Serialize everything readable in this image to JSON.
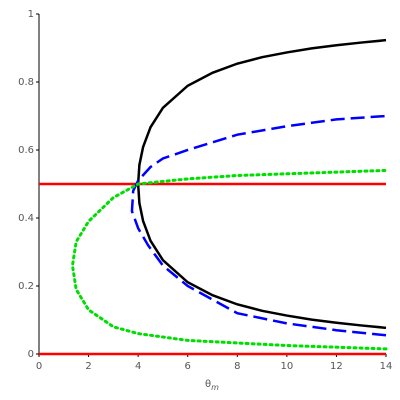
{
  "chart_data": {
    "type": "line",
    "xlabel": "θ",
    "xlabel_sub": "m",
    "xlim": [
      0,
      14
    ],
    "xticks": [
      0,
      2,
      4,
      6,
      8,
      10,
      12,
      14
    ],
    "ylim": [
      0,
      1
    ],
    "yticks": [
      0,
      0.2,
      0.4,
      0.6,
      0.8,
      1
    ],
    "series": [
      {
        "color": "#ff0000",
        "dash": "solid",
        "x": [
          0,
          14
        ],
        "values": [
          0.5,
          0.5
        ]
      },
      {
        "color": "#ff0000",
        "dash": "solid",
        "x": [
          0,
          14
        ],
        "values": [
          0,
          0
        ]
      },
      {
        "color": "#000000",
        "dash": "solid",
        "x": [
          14,
          13,
          12,
          11,
          10,
          9,
          8,
          7,
          6,
          5,
          4.5,
          4.2,
          4.05,
          4,
          4.05,
          4.2,
          4.5,
          5,
          6,
          7,
          8,
          9,
          10,
          11,
          12,
          13,
          14
        ],
        "values": [
          0.077,
          0.084,
          0.092,
          0.101,
          0.113,
          0.127,
          0.146,
          0.173,
          0.211,
          0.276,
          0.333,
          0.391,
          0.444,
          0.5,
          0.556,
          0.609,
          0.667,
          0.724,
          0.789,
          0.827,
          0.854,
          0.873,
          0.887,
          0.899,
          0.908,
          0.916,
          0.923
        ]
      },
      {
        "color": "#0000ff",
        "dash": "dashed",
        "x": [
          14,
          12,
          10,
          8,
          6,
          5,
          4.4,
          4,
          3.75,
          3.8,
          4,
          4.5,
          5,
          6,
          8,
          10,
          12,
          14
        ],
        "values": [
          0.055,
          0.07,
          0.09,
          0.12,
          0.2,
          0.26,
          0.32,
          0.37,
          0.42,
          0.48,
          0.51,
          0.55,
          0.575,
          0.6,
          0.645,
          0.67,
          0.69,
          0.7
        ]
      },
      {
        "color": "#00dd00",
        "dash": "dotted",
        "x": [
          14,
          10,
          6,
          4,
          3,
          2,
          1.5,
          1.35,
          1.5,
          2,
          3,
          4,
          6,
          8,
          10,
          12,
          14
        ],
        "values": [
          0.015,
          0.025,
          0.04,
          0.06,
          0.08,
          0.13,
          0.19,
          0.26,
          0.33,
          0.39,
          0.46,
          0.5,
          0.515,
          0.525,
          0.53,
          0.535,
          0.54
        ]
      }
    ]
  }
}
